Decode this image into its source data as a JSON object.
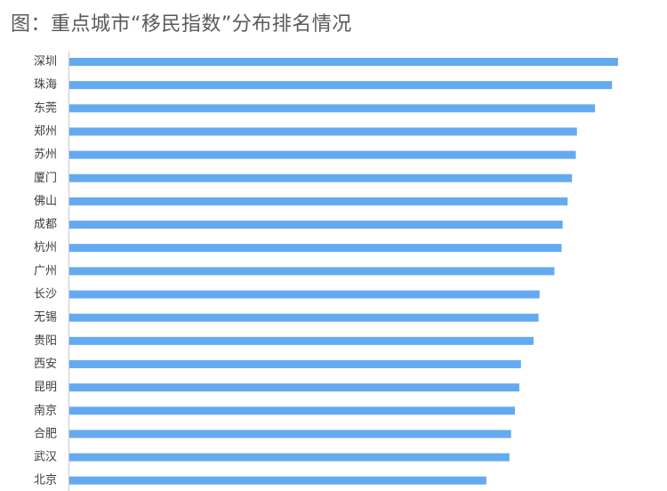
{
  "chart_data": {
    "type": "bar",
    "orientation": "horizontal",
    "title": "图：重点城市“移民指数”分布排名情况",
    "categories": [
      "深圳",
      "珠海",
      "东莞",
      "郑州",
      "苏州",
      "厦门",
      "佛山",
      "成都",
      "杭州",
      "广州",
      "长沙",
      "无锡",
      "贵阳",
      "西安",
      "昆明",
      "南京",
      "合肥",
      "武汉",
      "北京"
    ],
    "values": [
      100,
      98.9,
      95.8,
      92.5,
      92.3,
      91.6,
      90.8,
      89.9,
      89.7,
      88.4,
      85.7,
      85.5,
      84.6,
      82.3,
      82.0,
      81.2,
      80.5,
      80.2,
      76.0
    ],
    "xlim": [
      0,
      100
    ],
    "bar_color": "#64aaf0",
    "grid": false,
    "legend": "none"
  }
}
